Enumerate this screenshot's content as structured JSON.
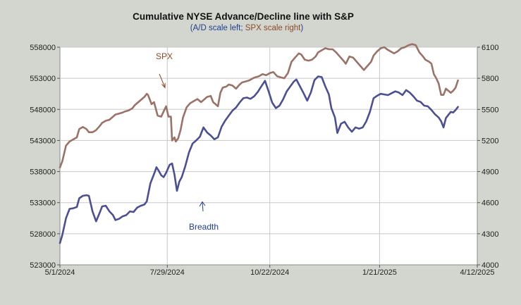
{
  "chart_data": {
    "type": "line",
    "title": "Cumulative NYSE Advance/Decline line with S&P",
    "subtitle_parts": [
      {
        "text": "(A/D scale left; ",
        "color": "#1f3f8f"
      },
      {
        "text": "SPX scale right",
        "color": "#8a4a2a"
      },
      {
        "text": ")",
        "color": "#1f3f8f"
      }
    ],
    "x_dates": [
      "5/1/2024",
      "7/29/2024",
      "10/22/2024",
      "1/21/2025",
      "4/12/2025"
    ],
    "x_day_offsets": [
      0,
      89,
      174,
      265,
      346
    ],
    "x_range_days": [
      0,
      346
    ],
    "y_left": {
      "ticks": [
        523000,
        528000,
        533000,
        538000,
        543000,
        548000,
        553000,
        558000
      ],
      "range": [
        523000,
        558000
      ],
      "labels": [
        "523000",
        "528000",
        "533000",
        "538000",
        "543000",
        "548000",
        "553000",
        "558000"
      ]
    },
    "y_right": {
      "ticks": [
        4000,
        4300,
        4600,
        4900,
        5200,
        5500,
        5800,
        6100
      ],
      "range": [
        4000,
        6100
      ],
      "labels": [
        "4000",
        "4300",
        "4600",
        "4900",
        "5200",
        "5500",
        "5800",
        "6100"
      ]
    },
    "annotations": [
      {
        "text": "SPX",
        "color": "#8a4a2a"
      },
      {
        "text": "Breadth",
        "color": "#1f3f8f"
      }
    ],
    "series": [
      {
        "name": "SPX",
        "axis": "right",
        "color": "#9a7268",
        "points": [
          [
            0,
            4940
          ],
          [
            2,
            5000
          ],
          [
            5,
            5150
          ],
          [
            8,
            5190
          ],
          [
            11,
            5210
          ],
          [
            14,
            5230
          ],
          [
            16,
            5310
          ],
          [
            19,
            5330
          ],
          [
            22,
            5310
          ],
          [
            24,
            5280
          ],
          [
            27,
            5280
          ],
          [
            30,
            5300
          ],
          [
            33,
            5340
          ],
          [
            35,
            5370
          ],
          [
            38,
            5390
          ],
          [
            41,
            5400
          ],
          [
            44,
            5430
          ],
          [
            46,
            5450
          ],
          [
            49,
            5460
          ],
          [
            52,
            5470
          ],
          [
            54,
            5480
          ],
          [
            57,
            5490
          ],
          [
            60,
            5510
          ],
          [
            62,
            5540
          ],
          [
            65,
            5570
          ],
          [
            68,
            5600
          ],
          [
            70,
            5620
          ],
          [
            72,
            5650
          ],
          [
            73,
            5640
          ],
          [
            76,
            5550
          ],
          [
            78,
            5570
          ],
          [
            81,
            5440
          ],
          [
            84,
            5430
          ],
          [
            86,
            5480
          ],
          [
            88,
            5530
          ],
          [
            90,
            5430
          ],
          [
            92,
            5430
          ],
          [
            93,
            5200
          ],
          [
            95,
            5230
          ],
          [
            96,
            5190
          ],
          [
            98,
            5220
          ],
          [
            100,
            5300
          ],
          [
            102,
            5420
          ],
          [
            105,
            5520
          ],
          [
            108,
            5560
          ],
          [
            111,
            5580
          ],
          [
            114,
            5600
          ],
          [
            117,
            5570
          ],
          [
            120,
            5600
          ],
          [
            122,
            5620
          ],
          [
            125,
            5630
          ],
          [
            127,
            5570
          ],
          [
            129,
            5550
          ],
          [
            131,
            5530
          ],
          [
            133,
            5660
          ],
          [
            135,
            5710
          ],
          [
            138,
            5720
          ],
          [
            140,
            5740
          ],
          [
            143,
            5730
          ],
          [
            146,
            5700
          ],
          [
            149,
            5740
          ],
          [
            151,
            5760
          ],
          [
            154,
            5770
          ],
          [
            157,
            5780
          ],
          [
            160,
            5800
          ],
          [
            162,
            5810
          ],
          [
            165,
            5820
          ],
          [
            168,
            5840
          ],
          [
            171,
            5830
          ],
          [
            174,
            5850
          ],
          [
            177,
            5860
          ],
          [
            180,
            5820
          ],
          [
            183,
            5810
          ],
          [
            186,
            5800
          ],
          [
            189,
            5850
          ],
          [
            192,
            5960
          ],
          [
            195,
            6000
          ],
          [
            198,
            6040
          ],
          [
            200,
            6030
          ],
          [
            203,
            5980
          ],
          [
            206,
            5970
          ],
          [
            209,
            5980
          ],
          [
            212,
            6010
          ],
          [
            214,
            6050
          ],
          [
            217,
            6070
          ],
          [
            220,
            6090
          ],
          [
            223,
            6080
          ],
          [
            226,
            6080
          ],
          [
            229,
            6050
          ],
          [
            232,
            6010
          ],
          [
            235,
            5970
          ],
          [
            237,
            5940
          ],
          [
            240,
            6010
          ],
          [
            243,
            6000
          ],
          [
            246,
            5960
          ],
          [
            249,
            5920
          ],
          [
            252,
            5880
          ],
          [
            255,
            5920
          ],
          [
            258,
            5960
          ],
          [
            260,
            6020
          ],
          [
            263,
            6060
          ],
          [
            266,
            6090
          ],
          [
            269,
            6100
          ],
          [
            271,
            6080
          ],
          [
            274,
            6060
          ],
          [
            277,
            6040
          ],
          [
            280,
            6060
          ],
          [
            283,
            6090
          ],
          [
            286,
            6100
          ],
          [
            289,
            6120
          ],
          [
            292,
            6130
          ],
          [
            295,
            6120
          ],
          [
            298,
            6050
          ],
          [
            301,
            6010
          ],
          [
            303,
            5980
          ],
          [
            306,
            5960
          ],
          [
            308,
            5940
          ],
          [
            310,
            5840
          ],
          [
            312,
            5800
          ],
          [
            314,
            5750
          ],
          [
            316,
            5640
          ],
          [
            318,
            5640
          ],
          [
            320,
            5700
          ],
          [
            322,
            5680
          ],
          [
            324,
            5660
          ],
          [
            326,
            5680
          ],
          [
            328,
            5710
          ],
          [
            330,
            5780
          ]
        ]
      },
      {
        "name": "Breadth",
        "axis": "left",
        "color": "#4b4f94",
        "points": [
          [
            0,
            526500
          ],
          [
            2,
            527800
          ],
          [
            5,
            530500
          ],
          [
            8,
            532000
          ],
          [
            11,
            532100
          ],
          [
            14,
            532300
          ],
          [
            16,
            533700
          ],
          [
            19,
            534100
          ],
          [
            22,
            534200
          ],
          [
            24,
            534100
          ],
          [
            27,
            531600
          ],
          [
            30,
            530000
          ],
          [
            33,
            531400
          ],
          [
            35,
            532400
          ],
          [
            38,
            532500
          ],
          [
            41,
            531600
          ],
          [
            44,
            531000
          ],
          [
            46,
            530200
          ],
          [
            49,
            530400
          ],
          [
            52,
            530800
          ],
          [
            55,
            531000
          ],
          [
            58,
            531600
          ],
          [
            61,
            531500
          ],
          [
            64,
            532200
          ],
          [
            67,
            532500
          ],
          [
            70,
            532700
          ],
          [
            72,
            533200
          ],
          [
            75,
            536100
          ],
          [
            78,
            537600
          ],
          [
            80,
            538700
          ],
          [
            82,
            538100
          ],
          [
            84,
            537400
          ],
          [
            86,
            537100
          ],
          [
            88,
            537800
          ],
          [
            91,
            539100
          ],
          [
            93,
            539300
          ],
          [
            95,
            537500
          ],
          [
            97,
            534900
          ],
          [
            99,
            536400
          ],
          [
            101,
            537100
          ],
          [
            104,
            538900
          ],
          [
            107,
            541100
          ],
          [
            110,
            542500
          ],
          [
            113,
            543000
          ],
          [
            116,
            543600
          ],
          [
            119,
            545100
          ],
          [
            122,
            544300
          ],
          [
            125,
            543800
          ],
          [
            128,
            543200
          ],
          [
            131,
            543500
          ],
          [
            134,
            545200
          ],
          [
            137,
            546200
          ],
          [
            140,
            547000
          ],
          [
            143,
            547800
          ],
          [
            146,
            548300
          ],
          [
            149,
            549100
          ],
          [
            152,
            549800
          ],
          [
            155,
            549900
          ],
          [
            158,
            549700
          ],
          [
            161,
            550100
          ],
          [
            164,
            550800
          ],
          [
            167,
            551700
          ],
          [
            170,
            552600
          ],
          [
            173,
            550900
          ],
          [
            176,
            549100
          ],
          [
            179,
            548200
          ],
          [
            182,
            548600
          ],
          [
            185,
            549600
          ],
          [
            188,
            550900
          ],
          [
            191,
            551700
          ],
          [
            194,
            552500
          ],
          [
            196,
            552800
          ],
          [
            199,
            551700
          ],
          [
            202,
            550600
          ],
          [
            205,
            549400
          ],
          [
            208,
            550700
          ],
          [
            211,
            552700
          ],
          [
            214,
            553300
          ],
          [
            217,
            553200
          ],
          [
            220,
            551700
          ],
          [
            223,
            550400
          ],
          [
            225,
            548200
          ],
          [
            228,
            546700
          ],
          [
            230,
            544200
          ],
          [
            233,
            545700
          ],
          [
            236,
            546000
          ],
          [
            239,
            545100
          ],
          [
            242,
            544400
          ],
          [
            245,
            545100
          ],
          [
            248,
            544900
          ],
          [
            251,
            545100
          ],
          [
            254,
            546100
          ],
          [
            257,
            547600
          ],
          [
            260,
            549800
          ],
          [
            263,
            550200
          ],
          [
            266,
            550500
          ],
          [
            269,
            550400
          ],
          [
            272,
            550300
          ],
          [
            275,
            550600
          ],
          [
            278,
            550900
          ],
          [
            281,
            550700
          ],
          [
            284,
            550300
          ],
          [
            287,
            551100
          ],
          [
            290,
            550700
          ],
          [
            293,
            550100
          ],
          [
            296,
            549400
          ],
          [
            299,
            549200
          ],
          [
            302,
            548600
          ],
          [
            305,
            548500
          ],
          [
            308,
            547900
          ],
          [
            311,
            547200
          ],
          [
            314,
            546700
          ],
          [
            316,
            546100
          ],
          [
            318,
            545100
          ],
          [
            320,
            546600
          ],
          [
            322,
            547100
          ],
          [
            324,
            547600
          ],
          [
            326,
            547500
          ],
          [
            328,
            547900
          ],
          [
            330,
            548400
          ]
        ]
      }
    ]
  }
}
